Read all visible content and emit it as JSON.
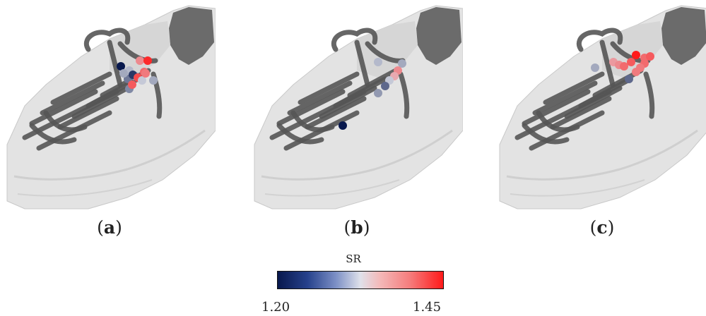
{
  "panels": [
    {
      "label": "a",
      "points": [
        {
          "sr": 1.2
        },
        {
          "sr": 1.3
        },
        {
          "sr": 1.38
        },
        {
          "sr": 1.44
        },
        {
          "sr": 1.28
        },
        {
          "sr": 1.26
        },
        {
          "sr": 1.22
        },
        {
          "sr": 1.4
        },
        {
          "sr": 1.42
        },
        {
          "sr": 1.29
        },
        {
          "sr": 1.27
        },
        {
          "sr": 1.41
        },
        {
          "sr": 1.31
        },
        {
          "sr": 1.39
        },
        {
          "sr": 1.29
        }
      ]
    },
    {
      "label": "b",
      "points": [
        {
          "sr": 1.3
        },
        {
          "sr": 1.29
        },
        {
          "sr": 1.38
        },
        {
          "sr": 1.36
        },
        {
          "sr": 1.31
        },
        {
          "sr": 1.25
        },
        {
          "sr": 1.28
        },
        {
          "sr": 1.2
        }
      ]
    },
    {
      "label": "c",
      "points": [
        {
          "sr": 1.29
        },
        {
          "sr": 1.37
        },
        {
          "sr": 1.38
        },
        {
          "sr": 1.4
        },
        {
          "sr": 1.41
        },
        {
          "sr": 1.45
        },
        {
          "sr": 1.4
        },
        {
          "sr": 1.41
        },
        {
          "sr": 1.4
        },
        {
          "sr": 1.39
        },
        {
          "sr": 1.39
        },
        {
          "sr": 1.25
        }
      ]
    }
  ],
  "captions": {
    "a": "a",
    "b": "b",
    "c": "c"
  },
  "colorbar": {
    "title": "SR",
    "min_label": "1.20",
    "max_label": "1.45",
    "min": 1.2,
    "max": 1.45,
    "colors": [
      "#08184d",
      "#dfe1ea",
      "#ff1a1a"
    ]
  }
}
